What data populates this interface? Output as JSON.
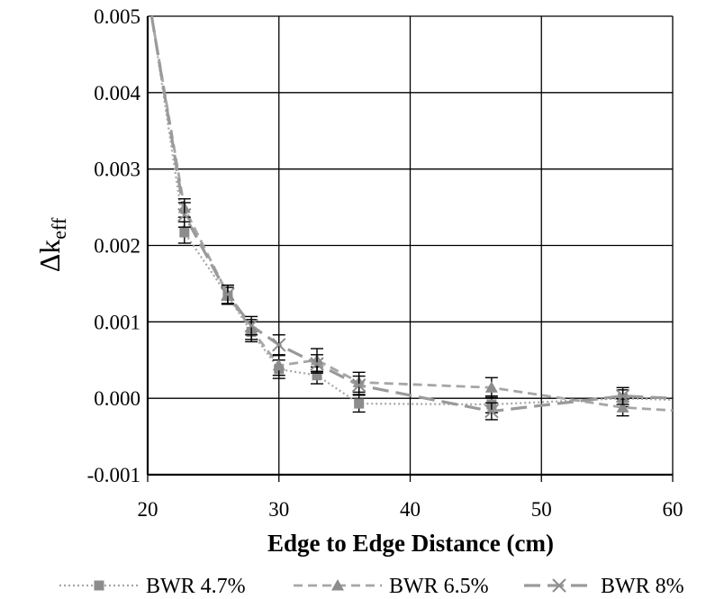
{
  "chart_data": {
    "type": "line",
    "title": "",
    "xlabel": "Edge to Edge Distance (cm)",
    "ylabel": {
      "main": "Δk",
      "sub": "eff"
    },
    "xlim": [
      20,
      60
    ],
    "ylim": [
      -0.001,
      0.005
    ],
    "xticks": [
      20,
      30,
      40,
      50,
      60
    ],
    "xtick_labels": [
      "20",
      "30",
      "40",
      "50",
      "60"
    ],
    "yticks": [
      -0.001,
      0.0,
      0.001,
      0.002,
      0.003,
      0.004,
      0.005
    ],
    "ytick_labels": [
      "-0.001",
      "0.000",
      "0.001",
      "0.002",
      "0.003",
      "0.004",
      "0.005"
    ],
    "grid": true,
    "legend_position": "bottom",
    "series": [
      {
        "name": "BWR 4.7%",
        "line": "dotted",
        "marker": "square",
        "color": "#a6a6a6",
        "marker_color": "#8c8c8c",
        "points": [
          {
            "x": 20.3,
            "y": 0.005,
            "err": 0
          },
          {
            "x": 22.8,
            "y": 0.00217,
            "err": 0.00014
          },
          {
            "x": 26.1,
            "y": 0.00134,
            "err": 0.00011
          },
          {
            "x": 27.9,
            "y": 0.00087,
            "err": 0.00013
          },
          {
            "x": 30.0,
            "y": 0.00038,
            "err": 0.00012
          },
          {
            "x": 32.9,
            "y": 0.0003,
            "err": 0.00011
          },
          {
            "x": 36.1,
            "y": -7e-05,
            "err": 0.00011
          },
          {
            "x": 46.2,
            "y": -8e-05,
            "err": 0.00011
          },
          {
            "x": 56.2,
            "y": 0.0,
            "err": 0.00011
          },
          {
            "x": 60.0,
            "y": -2e-05,
            "err": 0
          }
        ]
      },
      {
        "name": "BWR 6.5%",
        "line": "dashed",
        "marker": "triangle",
        "color": "#a6a6a6",
        "marker_color": "#8c8c8c",
        "points": [
          {
            "x": 20.3,
            "y": 0.005,
            "err": 0
          },
          {
            "x": 22.8,
            "y": 0.00249,
            "err": 0.00012
          },
          {
            "x": 26.1,
            "y": 0.00136,
            "err": 0.00012
          },
          {
            "x": 27.9,
            "y": 0.0009,
            "err": 0.00013
          },
          {
            "x": 30.0,
            "y": 0.00043,
            "err": 0.00013
          },
          {
            "x": 32.9,
            "y": 0.0005,
            "err": 0.00015
          },
          {
            "x": 36.1,
            "y": 0.00021,
            "err": 0.00013
          },
          {
            "x": 46.2,
            "y": 0.00014,
            "err": 0.00013
          },
          {
            "x": 56.2,
            "y": -0.00012,
            "err": 0.00011
          },
          {
            "x": 60.0,
            "y": -0.00016,
            "err": 0
          }
        ]
      },
      {
        "name": "BWR 8%",
        "line": "long-dash",
        "marker": "x",
        "color": "#9a9a9a",
        "marker_color": "#8c8c8c",
        "points": [
          {
            "x": 20.3,
            "y": 0.005,
            "err": 0
          },
          {
            "x": 22.8,
            "y": 0.0024,
            "err": 0.00016
          },
          {
            "x": 26.1,
            "y": 0.00136,
            "err": 0.00012
          },
          {
            "x": 27.9,
            "y": 0.00095,
            "err": 0.00012
          },
          {
            "x": 30.0,
            "y": 0.0007,
            "err": 0.00013
          },
          {
            "x": 32.9,
            "y": 0.00045,
            "err": 0.00012
          },
          {
            "x": 36.1,
            "y": 0.00017,
            "err": 0.00012
          },
          {
            "x": 46.2,
            "y": -0.00017,
            "err": 0.00011
          },
          {
            "x": 56.2,
            "y": 3e-05,
            "err": 0.00011
          },
          {
            "x": 60.0,
            "y": 0.0,
            "err": 0
          }
        ]
      }
    ]
  }
}
